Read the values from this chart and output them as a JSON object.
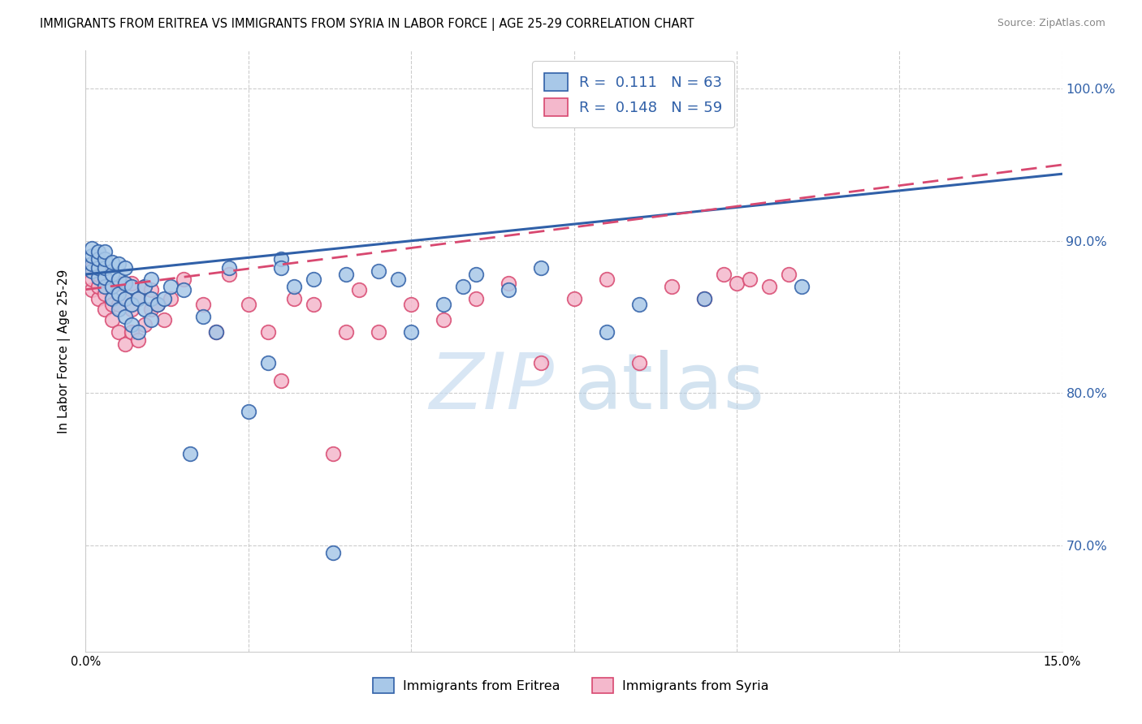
{
  "title": "IMMIGRANTS FROM ERITREA VS IMMIGRANTS FROM SYRIA IN LABOR FORCE | AGE 25-29 CORRELATION CHART",
  "source": "Source: ZipAtlas.com",
  "ylabel": "In Labor Force | Age 25-29",
  "legend_label1": "Immigrants from Eritrea",
  "legend_label2": "Immigrants from Syria",
  "xmin": 0.0,
  "xmax": 0.15,
  "ymin": 0.63,
  "ymax": 1.025,
  "yticks": [
    0.7,
    0.8,
    0.9,
    1.0
  ],
  "ytick_labels": [
    "70.0%",
    "80.0%",
    "90.0%",
    "100.0%"
  ],
  "xticks": [
    0.0,
    0.025,
    0.05,
    0.075,
    0.1,
    0.125,
    0.15
  ],
  "R1": 0.111,
  "N1": 63,
  "R2": 0.148,
  "N2": 59,
  "color1": "#a8c8e8",
  "color2": "#f4b8cc",
  "line_color1": "#3060a8",
  "line_color2": "#d84870",
  "eritrea_x": [
    0.001,
    0.001,
    0.001,
    0.001,
    0.002,
    0.002,
    0.002,
    0.002,
    0.003,
    0.003,
    0.003,
    0.003,
    0.003,
    0.004,
    0.004,
    0.004,
    0.004,
    0.005,
    0.005,
    0.005,
    0.005,
    0.006,
    0.006,
    0.006,
    0.006,
    0.007,
    0.007,
    0.007,
    0.008,
    0.008,
    0.009,
    0.009,
    0.01,
    0.01,
    0.01,
    0.011,
    0.012,
    0.013,
    0.015,
    0.016,
    0.018,
    0.02,
    0.022,
    0.025,
    0.028,
    0.03,
    0.03,
    0.032,
    0.035,
    0.038,
    0.04,
    0.045,
    0.048,
    0.05,
    0.055,
    0.058,
    0.06,
    0.065,
    0.07,
    0.08,
    0.085,
    0.095,
    0.11
  ],
  "eritrea_y": [
    0.88,
    0.885,
    0.89,
    0.895,
    0.876,
    0.882,
    0.888,
    0.893,
    0.87,
    0.876,
    0.882,
    0.888,
    0.893,
    0.862,
    0.87,
    0.878,
    0.886,
    0.855,
    0.865,
    0.875,
    0.885,
    0.85,
    0.862,
    0.872,
    0.882,
    0.845,
    0.858,
    0.87,
    0.84,
    0.862,
    0.855,
    0.87,
    0.848,
    0.862,
    0.875,
    0.858,
    0.862,
    0.87,
    0.868,
    0.76,
    0.85,
    0.84,
    0.882,
    0.788,
    0.82,
    0.888,
    0.882,
    0.87,
    0.875,
    0.695,
    0.878,
    0.88,
    0.875,
    0.84,
    0.858,
    0.87,
    0.878,
    0.868,
    0.882,
    0.84,
    0.858,
    0.862,
    0.87
  ],
  "syria_x": [
    0.001,
    0.001,
    0.001,
    0.002,
    0.002,
    0.002,
    0.002,
    0.003,
    0.003,
    0.003,
    0.003,
    0.004,
    0.004,
    0.004,
    0.005,
    0.005,
    0.005,
    0.006,
    0.006,
    0.007,
    0.007,
    0.007,
    0.008,
    0.008,
    0.009,
    0.009,
    0.01,
    0.01,
    0.011,
    0.012,
    0.013,
    0.015,
    0.018,
    0.02,
    0.022,
    0.025,
    0.028,
    0.03,
    0.032,
    0.035,
    0.038,
    0.04,
    0.042,
    0.045,
    0.05,
    0.055,
    0.06,
    0.065,
    0.07,
    0.075,
    0.08,
    0.085,
    0.09,
    0.095,
    0.098,
    0.1,
    0.102,
    0.105,
    0.108
  ],
  "syria_y": [
    0.868,
    0.875,
    0.882,
    0.862,
    0.87,
    0.878,
    0.885,
    0.855,
    0.865,
    0.875,
    0.882,
    0.848,
    0.858,
    0.87,
    0.84,
    0.858,
    0.872,
    0.832,
    0.862,
    0.84,
    0.855,
    0.872,
    0.835,
    0.862,
    0.845,
    0.87,
    0.855,
    0.868,
    0.858,
    0.848,
    0.862,
    0.875,
    0.858,
    0.84,
    0.878,
    0.858,
    0.84,
    0.808,
    0.862,
    0.858,
    0.76,
    0.84,
    0.868,
    0.84,
    0.858,
    0.848,
    0.862,
    0.872,
    0.82,
    0.862,
    0.875,
    0.82,
    0.87,
    0.862,
    0.878,
    0.872,
    0.875,
    0.87,
    0.878
  ],
  "line1_x0": 0.0,
  "line1_y0": 0.878,
  "line1_x1": 0.15,
  "line1_y1": 0.944,
  "line2_x0": 0.0,
  "line2_y0": 0.868,
  "line2_x1": 0.15,
  "line2_y1": 0.95,
  "watermark_zip_color": "#c8dcf0",
  "watermark_atlas_color": "#b0cce4",
  "bg_color": "#ffffff"
}
